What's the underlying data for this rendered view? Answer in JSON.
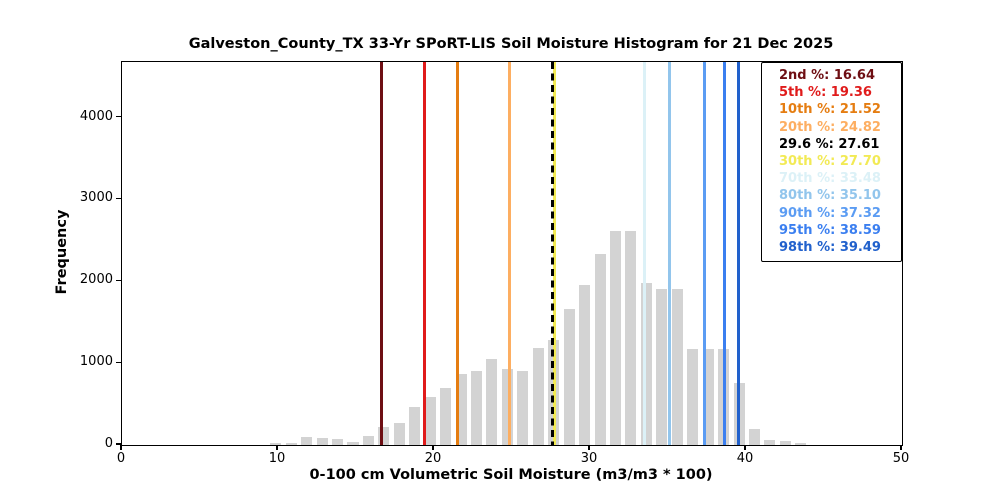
{
  "title": "Galveston_County_TX 33-Yr SPoRT-LIS Soil Moisture Histogram for 21 Dec 2025",
  "axes": {
    "xlabel": "0-100 cm Volumetric Soil Moisture (m3/m3 * 100)",
    "ylabel": "Frequency",
    "xlim": [
      0,
      50
    ],
    "ylim": [
      0,
      4680
    ],
    "x_ticks": [
      "0",
      "10",
      "20",
      "30",
      "40",
      "50"
    ],
    "y_ticks": [
      "0",
      "1000",
      "2000",
      "3000",
      "4000"
    ],
    "grid": "off",
    "legend_position": "upper right"
  },
  "chart_data": {
    "type": "bar",
    "subtype": "histogram",
    "title": "Galveston_County_TX 33-Yr SPoRT-LIS Soil Moisture Histogram for 21 Dec 2025",
    "xlabel": "0-100 cm Volumetric Soil Moisture (m3/m3 * 100)",
    "ylabel": "Frequency",
    "bar_color": "#d3d3d3",
    "bin_start": 9.36,
    "bin_width": 0.99,
    "counts": [
      30,
      28,
      100,
      90,
      75,
      35,
      115,
      225,
      265,
      460,
      585,
      695,
      870,
      900,
      1050,
      925,
      905,
      1185,
      1285,
      1665,
      1955,
      2330,
      2610,
      2610,
      1975,
      1905,
      1905,
      1175,
      1175,
      1175,
      760,
      200,
      60,
      45,
      20
    ],
    "percentiles": [
      {
        "label": "2nd %",
        "value": 16.64,
        "value_text": "16.64",
        "color": "#6e0e13",
        "dashed": false
      },
      {
        "label": "5th %",
        "value": 19.36,
        "value_text": "19.36",
        "color": "#e01b1b",
        "dashed": false
      },
      {
        "label": "10th %",
        "value": 21.52,
        "value_text": "21.52",
        "color": "#e57d11",
        "dashed": false
      },
      {
        "label": "20th %",
        "value": 24.82,
        "value_text": "24.82",
        "color": "#fdae61",
        "dashed": false
      },
      {
        "label": "29.6 %",
        "value": 27.61,
        "value_text": "27.61",
        "color": "#000000",
        "dashed": true
      },
      {
        "label": "30th %",
        "value": 27.7,
        "value_text": "27.70",
        "color": "#f2ea55",
        "dashed": false
      },
      {
        "label": "70th %",
        "value": 33.48,
        "value_text": "33.48",
        "color": "#dcf1f7",
        "dashed": false
      },
      {
        "label": "80th %",
        "value": 35.1,
        "value_text": "35.10",
        "color": "#92c5ec",
        "dashed": false
      },
      {
        "label": "90th %",
        "value": 37.32,
        "value_text": "37.32",
        "color": "#5b9cf3",
        "dashed": false
      },
      {
        "label": "95th %",
        "value": 38.59,
        "value_text": "38.59",
        "color": "#3b7ff0",
        "dashed": false
      },
      {
        "label": "98th %",
        "value": 39.49,
        "value_text": "39.49",
        "color": "#2161cc",
        "dashed": false
      }
    ]
  },
  "legend": {
    "separator": ": "
  }
}
